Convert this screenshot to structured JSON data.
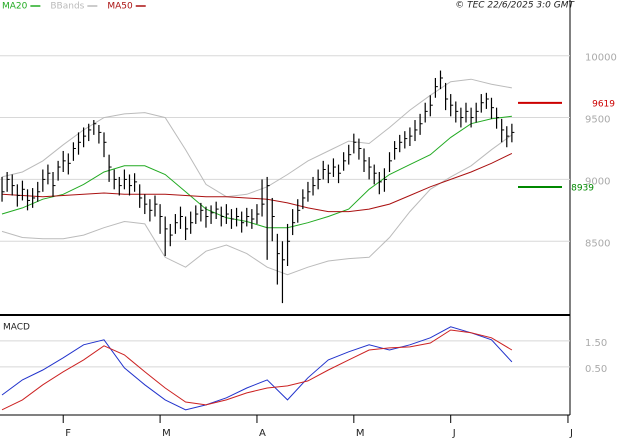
{
  "chart_data": [
    {
      "type": "ohlc",
      "annotation": "© TEC 22/6/2025 3:0 GMT",
      "x": [
        0,
        1,
        2,
        3,
        4,
        5,
        6,
        7,
        8,
        9,
        10,
        11,
        12,
        13,
        14,
        15,
        16,
        17,
        18,
        19,
        20,
        21,
        22,
        23,
        24,
        25,
        26,
        27,
        28,
        29,
        30,
        31,
        32,
        33,
        34,
        35,
        36,
        37,
        38,
        39,
        40,
        41,
        42,
        43,
        44,
        45,
        46,
        47,
        48,
        49,
        50,
        51,
        52,
        53,
        54,
        55,
        56,
        57,
        58,
        59,
        60,
        61,
        62,
        63,
        64,
        65,
        66,
        67,
        68,
        69,
        70,
        71,
        72,
        73,
        74,
        75,
        76,
        77,
        78,
        79,
        80,
        81,
        82,
        83,
        84,
        85,
        86,
        87,
        88,
        89,
        90,
        91,
        92,
        93,
        94,
        95,
        96,
        97,
        98,
        99,
        100
      ],
      "high": [
        9020,
        9060,
        9040,
        8960,
        8990,
        8920,
        8930,
        8980,
        9080,
        9120,
        9060,
        9150,
        9230,
        9210,
        9300,
        9380,
        9420,
        9450,
        9480,
        9440,
        9380,
        9200,
        9080,
        9020,
        9080,
        9040,
        9050,
        8960,
        8880,
        8840,
        8870,
        8800,
        8700,
        8640,
        8720,
        8780,
        8700,
        8740,
        8790,
        8810,
        8780,
        8790,
        8820,
        8780,
        8800,
        8760,
        8770,
        8740,
        8770,
        8760,
        8800,
        9000,
        9020,
        8850,
        8560,
        8500,
        8640,
        8760,
        8840,
        8920,
        8980,
        9020,
        9080,
        9150,
        9120,
        9170,
        9120,
        9220,
        9280,
        9370,
        9330,
        9250,
        9180,
        9120,
        9060,
        9090,
        9220,
        9310,
        9360,
        9390,
        9420,
        9480,
        9530,
        9620,
        9680,
        9820,
        9880,
        9780,
        9690,
        9630,
        9580,
        9620,
        9580,
        9620,
        9690,
        9700,
        9660,
        9580,
        9490,
        9430,
        9450
      ],
      "low": [
        8820,
        8900,
        8870,
        8780,
        8830,
        8750,
        8770,
        8820,
        8900,
        8960,
        8860,
        8990,
        9060,
        9040,
        9150,
        9200,
        9260,
        9310,
        9360,
        9290,
        9180,
        8980,
        8920,
        8870,
        8920,
        8870,
        8900,
        8770,
        8720,
        8660,
        8700,
        8560,
        8380,
        8460,
        8560,
        8600,
        8510,
        8560,
        8640,
        8660,
        8610,
        8640,
        8680,
        8620,
        8640,
        8600,
        8620,
        8570,
        8620,
        8600,
        8640,
        8700,
        8350,
        8500,
        8150,
        8000,
        8300,
        8550,
        8650,
        8760,
        8820,
        8870,
        8920,
        9000,
        8970,
        9020,
        8970,
        9070,
        9120,
        9210,
        9160,
        9060,
        9000,
        8960,
        8880,
        8900,
        9060,
        9160,
        9220,
        9250,
        9270,
        9310,
        9360,
        9460,
        9510,
        9660,
        9730,
        9560,
        9510,
        9460,
        9420,
        9460,
        9420,
        9460,
        9540,
        9570,
        9490,
        9410,
        9300,
        9260,
        9300
      ],
      "close": [
        8900,
        9000,
        8950,
        8870,
        8920,
        8830,
        8850,
        8900,
        9000,
        9050,
        8950,
        9100,
        9150,
        9130,
        9250,
        9300,
        9350,
        9400,
        9450,
        9380,
        9300,
        9100,
        9000,
        8950,
        9000,
        8950,
        8980,
        8850,
        8800,
        8750,
        8800,
        8700,
        8600,
        8550,
        8650,
        8700,
        8600,
        8650,
        8720,
        8750,
        8700,
        8730,
        8760,
        8700,
        8720,
        8680,
        8700,
        8650,
        8700,
        8680,
        8720,
        8800,
        8950,
        8700,
        8400,
        8350,
        8500,
        8650,
        8750,
        8850,
        8900,
        8950,
        9000,
        9080,
        9050,
        9100,
        9050,
        9150,
        9200,
        9300,
        9250,
        9150,
        9100,
        9050,
        8980,
        9000,
        9150,
        9250,
        9300,
        9330,
        9350,
        9400,
        9450,
        9550,
        9600,
        9750,
        9820,
        9650,
        9600,
        9550,
        9500,
        9550,
        9500,
        9550,
        9620,
        9650,
        9580,
        9500,
        9400,
        9350,
        9380
      ],
      "color": "#000000",
      "series": [
        {
          "name": "MA20",
          "color": "#22aa22",
          "x": [
            0,
            4,
            8,
            12,
            16,
            20,
            24,
            28,
            32,
            36,
            40,
            44,
            48,
            52,
            56,
            60,
            64,
            68,
            72,
            76,
            80,
            84,
            88,
            92,
            96,
            100
          ],
          "values": [
            8720,
            8770,
            8840,
            8880,
            8960,
            9060,
            9110,
            9110,
            9040,
            8900,
            8760,
            8690,
            8660,
            8610,
            8610,
            8650,
            8700,
            8760,
            8920,
            9040,
            9120,
            9200,
            9340,
            9450,
            9490,
            9510
          ]
        },
        {
          "name": "BBands",
          "color": "#bbbbbb",
          "x": [
            0,
            4,
            8,
            12,
            16,
            20,
            24,
            28,
            32,
            36,
            40,
            44,
            48,
            52,
            56,
            60,
            64,
            68,
            72,
            76,
            80,
            84,
            88,
            92,
            96,
            100
          ],
          "values": [
            9020,
            9060,
            9150,
            9280,
            9400,
            9500,
            9530,
            9540,
            9500,
            9240,
            8960,
            8860,
            8880,
            8940,
            9040,
            9150,
            9230,
            9310,
            9290,
            9420,
            9560,
            9680,
            9790,
            9810,
            9770,
            9740
          ],
          "lower": [
            8580,
            8530,
            8520,
            8520,
            8550,
            8610,
            8660,
            8640,
            8370,
            8290,
            8420,
            8470,
            8400,
            8290,
            8230,
            8290,
            8340,
            8360,
            8370,
            8530,
            8740,
            8920,
            9020,
            9110,
            9240,
            9360
          ]
        },
        {
          "name": "MA50",
          "color": "#aa1111",
          "x": [
            0,
            4,
            8,
            12,
            16,
            20,
            24,
            28,
            32,
            36,
            40,
            44,
            48,
            52,
            56,
            60,
            64,
            68,
            72,
            76,
            80,
            84,
            88,
            92,
            96,
            100
          ],
          "values": [
            8880,
            8870,
            8860,
            8870,
            8880,
            8890,
            8880,
            8880,
            8880,
            8870,
            8860,
            8860,
            8850,
            8840,
            8810,
            8770,
            8740,
            8740,
            8760,
            8800,
            8870,
            8940,
            9000,
            9060,
            9130,
            9210
          ]
        }
      ],
      "levels": [
        {
          "value": 9619,
          "color": "#cc0000"
        },
        {
          "value": 8939,
          "color": "#008800"
        }
      ],
      "xlim": [
        -0.4,
        111.4
      ],
      "xticks": [
        {
          "value": 12,
          "label": "F"
        },
        {
          "value": 31,
          "label": "M"
        },
        {
          "value": 50,
          "label": "A"
        },
        {
          "value": 69,
          "label": "M"
        },
        {
          "value": 88,
          "label": "J"
        },
        {
          "value": 111,
          "label": "J"
        }
      ],
      "ylim": [
        7920,
        10410
      ],
      "yticks": [
        8500,
        9000,
        9500,
        10000
      ],
      "grid": true
    },
    {
      "type": "line",
      "title": "MACD",
      "x": [
        0,
        4,
        8,
        12,
        16,
        20,
        24,
        28,
        32,
        36,
        40,
        44,
        48,
        52,
        56,
        60,
        64,
        68,
        72,
        76,
        80,
        84,
        88,
        92,
        96,
        100
      ],
      "series": [
        {
          "color": "#2233cc",
          "values": [
            -0.58,
            0,
            0.38,
            0.85,
            1.35,
            1.54,
            0.46,
            -0.19,
            -0.77,
            -1.15,
            -0.96,
            -0.69,
            -0.31,
            0,
            -0.77,
            0.08,
            0.77,
            1.08,
            1.35,
            1.15,
            1.35,
            1.62,
            2.04,
            1.81,
            1.54,
            0.69
          ]
        },
        {
          "color": "#cc2222",
          "values": [
            -1.15,
            -0.77,
            -0.19,
            0.31,
            0.77,
            1.31,
            0.96,
            0.31,
            -0.31,
            -0.85,
            -0.96,
            -0.77,
            -0.5,
            -0.31,
            -0.23,
            -0.04,
            0.38,
            0.77,
            1.15,
            1.23,
            1.27,
            1.42,
            1.92,
            1.81,
            1.62,
            1.15
          ]
        }
      ],
      "ylim": [
        -1.35,
        2.38
      ],
      "yticks": [
        {
          "value": 1.5,
          "label": "1.50"
        },
        {
          "value": 0.5,
          "label": "0.50"
        }
      ],
      "grid": true
    }
  ]
}
